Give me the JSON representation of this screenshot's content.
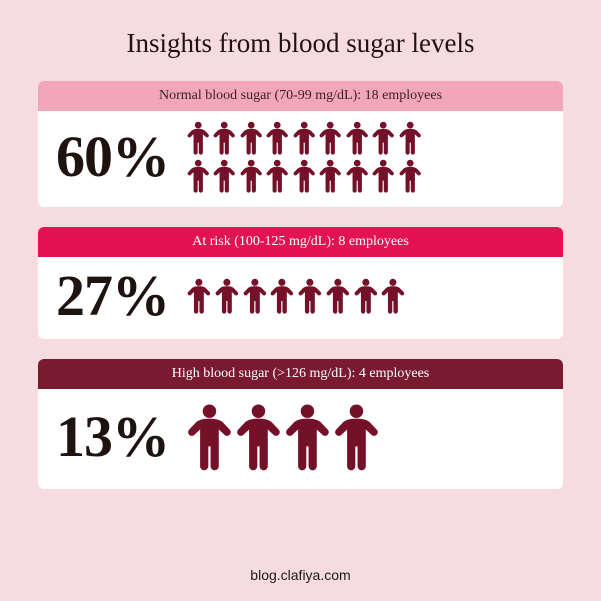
{
  "background_color": "#f6dbe0",
  "title": "Insights from blood sugar levels",
  "title_color": "#22120f",
  "card_background": "#ffffff",
  "footer": "blog.clafiya.com",
  "footer_color": "#1a1a1a",
  "icon_color": "#741129",
  "categories": [
    {
      "header": "Normal blood sugar (70-99 mg/dL): 18 employees",
      "header_bg": "#f2a7b8",
      "header_text_color": "#3a1e24",
      "percent": "60%",
      "percent_color": "#1e130f",
      "count": 18,
      "icon_size": 34,
      "people_per_row": 9,
      "body_height": 96
    },
    {
      "header": "At risk (100-125 mg/dL): 8 employees",
      "header_bg": "#e31351",
      "header_text_color": "#ffffff",
      "percent": "27%",
      "percent_color": "#1e130f",
      "count": 8,
      "icon_size": 36,
      "people_per_row": 8,
      "body_height": 78
    },
    {
      "header": "High blood sugar (>126 mg/dL): 4 employees",
      "header_bg": "#7a1a31",
      "header_text_color": "#ffffff",
      "percent": "13%",
      "percent_color": "#1e130f",
      "count": 4,
      "icon_size": 68,
      "people_per_row": 4,
      "body_height": 100
    }
  ]
}
